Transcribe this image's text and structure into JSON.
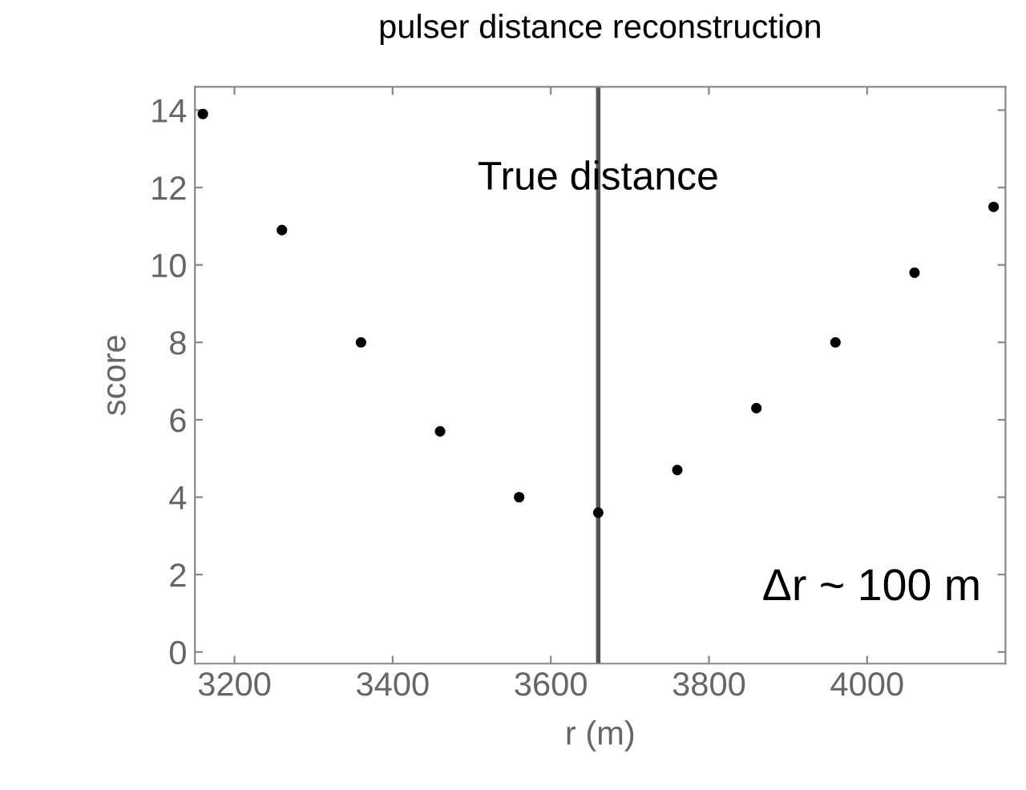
{
  "chart_data": {
    "type": "scatter",
    "title": "pulser distance reconstruction",
    "xlabel": "r (m)",
    "ylabel": "score",
    "x": [
      3160,
      3260,
      3360,
      3460,
      3560,
      3660,
      3760,
      3860,
      3960,
      4060,
      4160
    ],
    "values": [
      13.9,
      10.9,
      8.0,
      5.7,
      4.0,
      3.6,
      4.7,
      6.3,
      8.0,
      9.8,
      11.5
    ],
    "color": "#000000",
    "marker": "circle",
    "xlim": [
      3150,
      4175
    ],
    "ylim": [
      -0.3,
      14.6
    ],
    "xticks": [
      3200,
      3400,
      3600,
      3800,
      4000
    ],
    "yticks": [
      0,
      2,
      4,
      6,
      8,
      10,
      12,
      14
    ],
    "ref_lines": [
      {
        "axis": "x",
        "value": 3660,
        "label": "True distance",
        "color": "#555555"
      }
    ],
    "annotations": [
      "Δr ~ 100 m"
    ],
    "grid": false,
    "legend": false
  }
}
